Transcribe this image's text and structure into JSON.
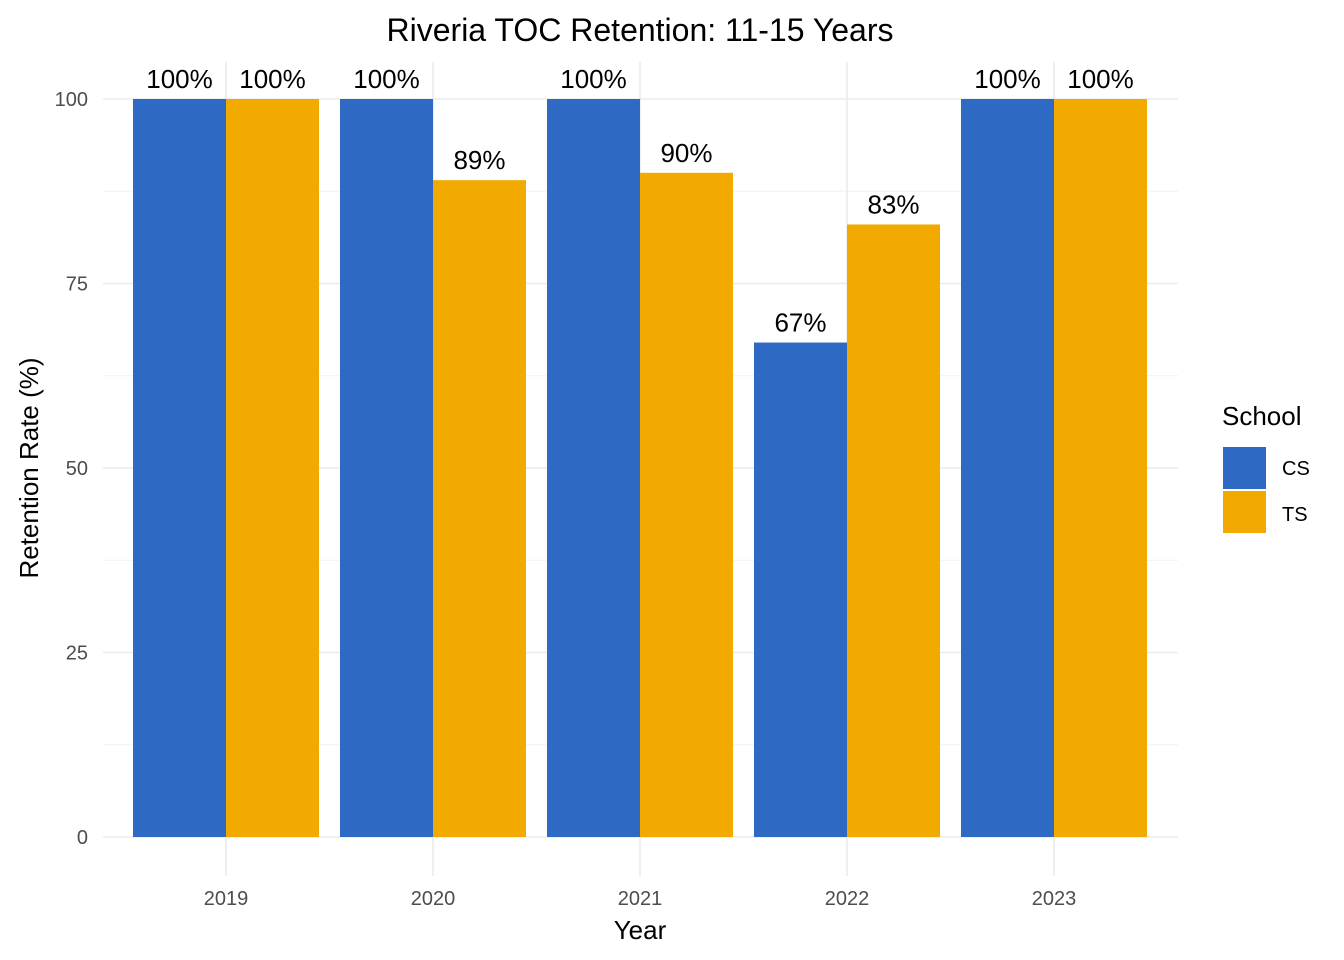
{
  "chart_data": {
    "type": "bar",
    "title": "Riveria TOC Retention: 11-15 Years",
    "xlabel": "Year",
    "ylabel": "Retention Rate (%)",
    "categories": [
      "2019",
      "2020",
      "2021",
      "2022",
      "2023"
    ],
    "ylim": [
      0,
      100
    ],
    "yticks": [
      0,
      25,
      50,
      75,
      100
    ],
    "grid": true,
    "legend": {
      "title": "School",
      "position": "right"
    },
    "series": [
      {
        "name": "CS",
        "color": "#2e6ac4",
        "values": [
          100,
          100,
          100,
          67,
          100
        ],
        "labels": [
          "100%",
          "100%",
          "100%",
          "67%",
          "100%"
        ]
      },
      {
        "name": "TS",
        "color": "#f2aa00",
        "values": [
          100,
          89,
          90,
          83,
          100
        ],
        "labels": [
          "100%",
          "89%",
          "90%",
          "83%",
          "100%"
        ]
      }
    ]
  }
}
